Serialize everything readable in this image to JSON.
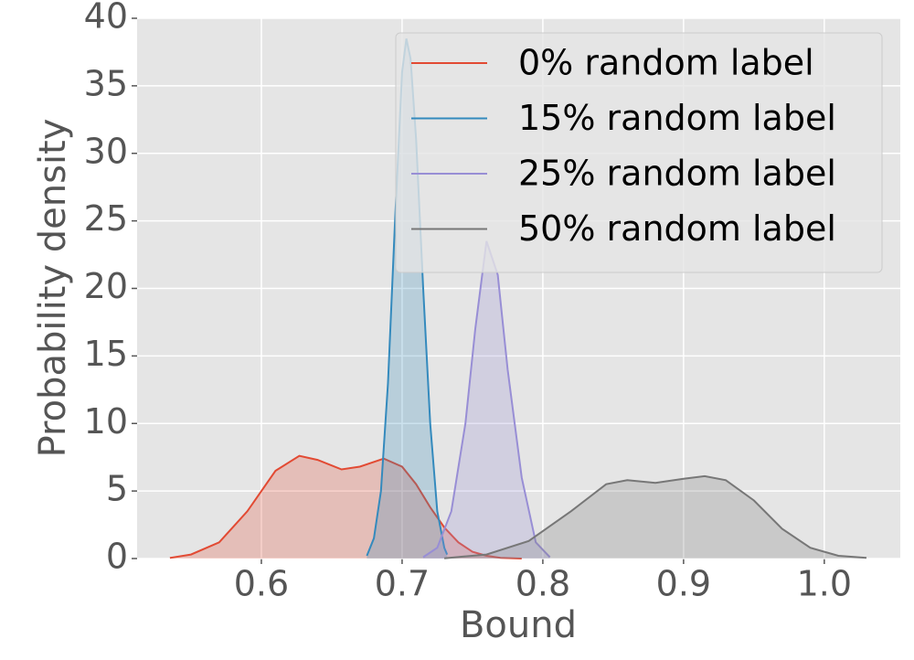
{
  "chart_data": {
    "type": "line",
    "xlabel": "Bound",
    "ylabel": "Probability density",
    "xlim": [
      0.5117,
      1.054
    ],
    "ylim": [
      0,
      40
    ],
    "xticks": [
      0.6,
      0.7,
      0.8,
      0.9,
      {
        "value": 1.0,
        "label": "1.0"
      }
    ],
    "yticks": [
      0,
      5,
      10,
      15,
      20,
      25,
      30,
      35,
      40
    ],
    "grid": true,
    "fill": true,
    "legend": "upper right",
    "series": [
      {
        "name": "0% random label",
        "color": "#E24A33",
        "x": [
          0.535,
          0.55,
          0.57,
          0.59,
          0.61,
          0.627,
          0.64,
          0.657,
          0.67,
          0.687,
          0.7,
          0.71,
          0.72,
          0.73,
          0.74,
          0.75,
          0.76,
          0.77,
          0.785
        ],
        "values": [
          0.05,
          0.3,
          1.2,
          3.5,
          6.5,
          7.6,
          7.3,
          6.6,
          6.8,
          7.4,
          6.8,
          5.5,
          3.8,
          2.3,
          1.2,
          0.5,
          0.2,
          0.05,
          0
        ]
      },
      {
        "name": "15% random label",
        "color": "#348ABD",
        "x": [
          0.675,
          0.68,
          0.685,
          0.69,
          0.695,
          0.7,
          0.703,
          0.706,
          0.71,
          0.715,
          0.72,
          0.725,
          0.73,
          0.732
        ],
        "values": [
          0.2,
          1.5,
          5,
          13,
          25,
          36,
          38.5,
          37,
          31,
          20,
          10,
          3.5,
          0.8,
          0.3
        ]
      },
      {
        "name": "25% random label",
        "color": "#988ED5",
        "x": [
          0.715,
          0.725,
          0.735,
          0.745,
          0.752,
          0.76,
          0.768,
          0.775,
          0.785,
          0.795,
          0.805
        ],
        "values": [
          0.1,
          0.8,
          3.5,
          10,
          17,
          23.5,
          21,
          14,
          6,
          1.2,
          0.1
        ]
      },
      {
        "name": "50% random label",
        "color": "#777777",
        "x": [
          0.73,
          0.76,
          0.79,
          0.82,
          0.845,
          0.86,
          0.88,
          0.9,
          0.915,
          0.93,
          0.95,
          0.97,
          0.99,
          1.01,
          1.03
        ],
        "values": [
          0.02,
          0.3,
          1.3,
          3.5,
          5.5,
          5.8,
          5.6,
          5.9,
          6.1,
          5.8,
          4.3,
          2.2,
          0.8,
          0.2,
          0.05
        ]
      }
    ]
  }
}
